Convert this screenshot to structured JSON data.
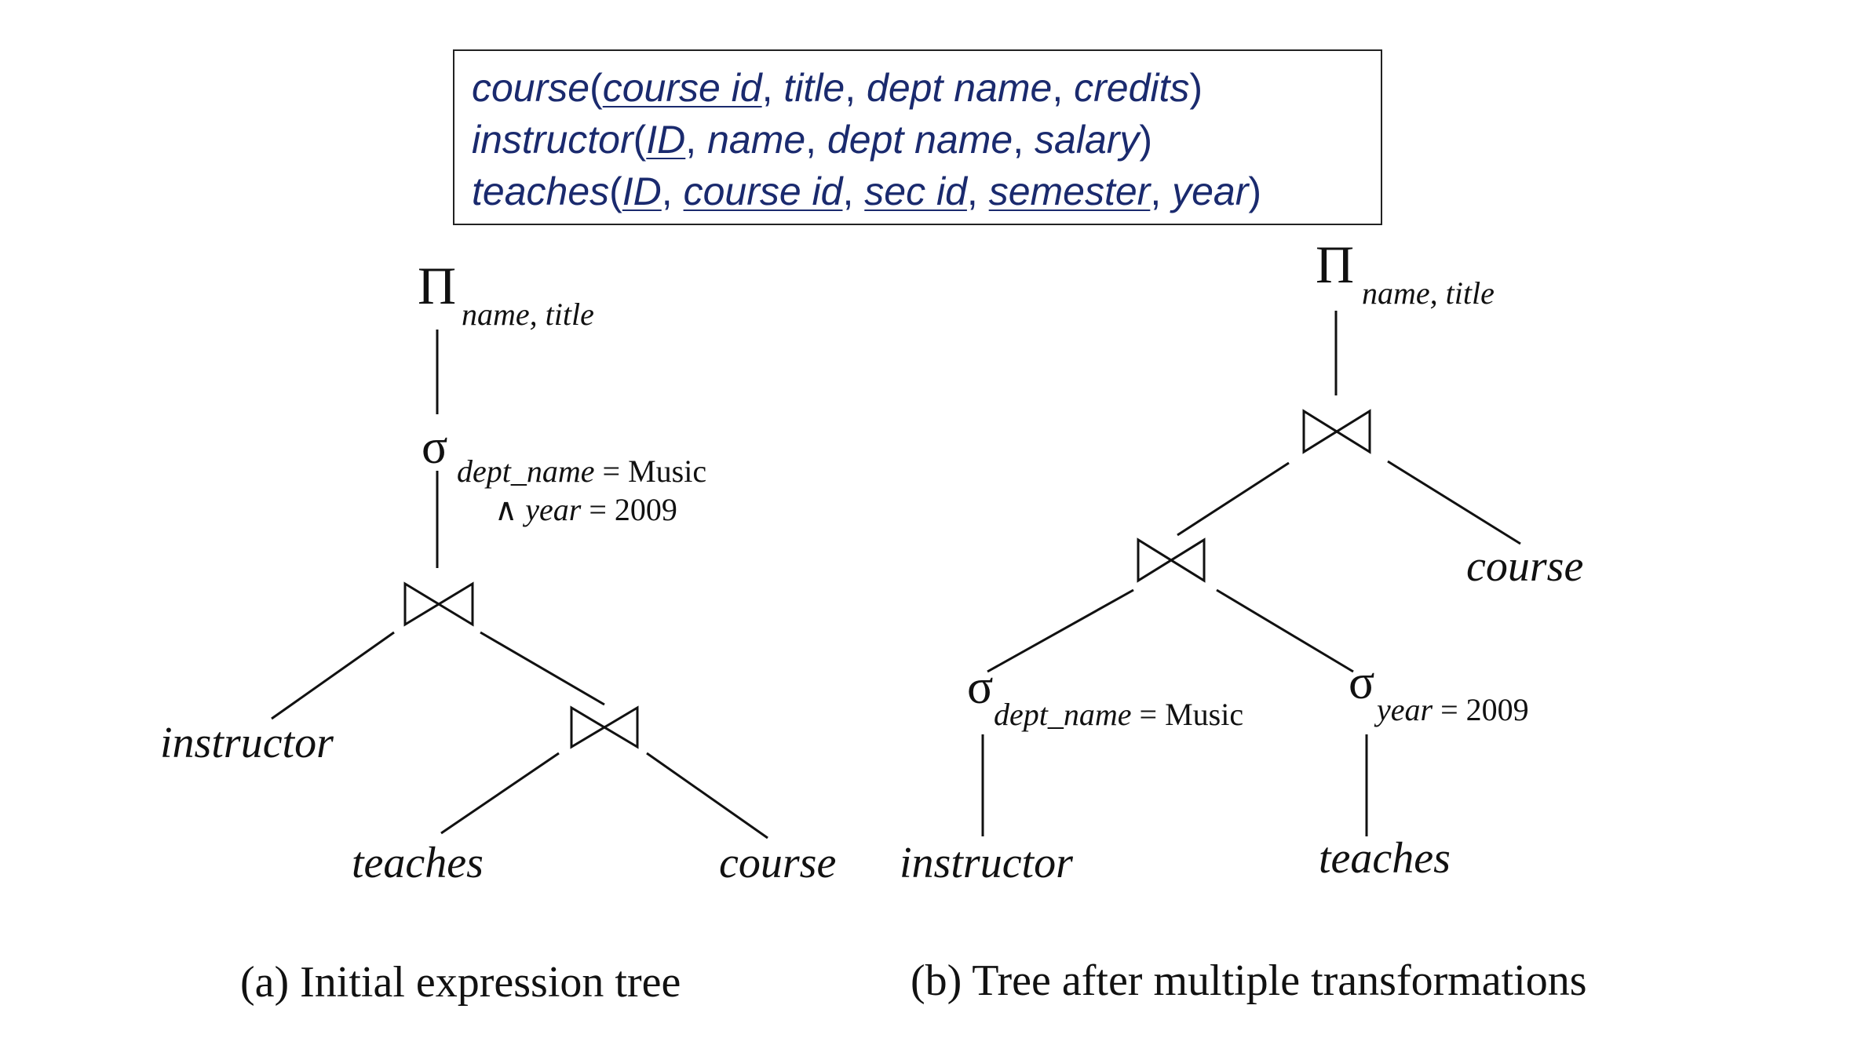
{
  "schema": {
    "course": {
      "rel": "course",
      "attrs": [
        {
          "t": "course id",
          "key": true
        },
        {
          "t": "title",
          "key": false
        },
        {
          "t": "dept name",
          "key": false
        },
        {
          "t": "credits",
          "key": false
        }
      ]
    },
    "instructor": {
      "rel": "instructor",
      "attrs": [
        {
          "t": "ID",
          "key": true
        },
        {
          "t": "name",
          "key": false
        },
        {
          "t": "dept name",
          "key": false
        },
        {
          "t": "salary",
          "key": false
        }
      ]
    },
    "teaches": {
      "rel": "teaches",
      "attrs": [
        {
          "t": "ID",
          "key": true
        },
        {
          "t": "course id",
          "key": true
        },
        {
          "t": "sec id",
          "key": true
        },
        {
          "t": "semester",
          "key": true
        },
        {
          "t": "year",
          "key": false
        }
      ]
    }
  },
  "tree_a": {
    "caption": "(a) Initial expression tree",
    "projection_symbol": "Π",
    "projection_attrs": "name, title",
    "selection_symbol": "σ",
    "selection_attr": "dept_name",
    "selection_value": " = Music",
    "selection_and": "∧ ",
    "selection_attr2": "year",
    "selection_value2": " = 2009",
    "join_symbol": "⋈",
    "leaf_instructor": "instructor",
    "leaf_teaches": "teaches",
    "leaf_course": "course"
  },
  "tree_b": {
    "caption": "(b) Tree after multiple transformations",
    "projection_symbol": "Π",
    "projection_attrs": "name, title",
    "selection_symbol": "σ",
    "sel1_attr": "dept_name",
    "sel1_value": " = Music",
    "sel2_attr": "year",
    "sel2_value": " = 2009",
    "leaf_course": "course",
    "leaf_instructor": "instructor",
    "leaf_teaches": "teaches"
  }
}
